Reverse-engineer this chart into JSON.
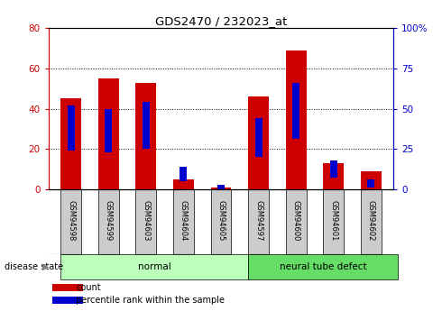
{
  "title": "GDS2470 / 232023_at",
  "samples": [
    "GSM94598",
    "GSM94599",
    "GSM94603",
    "GSM94604",
    "GSM94605",
    "GSM94597",
    "GSM94600",
    "GSM94601",
    "GSM94602"
  ],
  "count_values": [
    45,
    55,
    53,
    5,
    1,
    46,
    69,
    13,
    9
  ],
  "percentile_values": [
    26,
    25,
    27,
    7,
    1.5,
    22,
    33,
    9,
    3
  ],
  "groups": [
    {
      "label": "normal",
      "start": 0,
      "end": 5,
      "color": "#bbffbb"
    },
    {
      "label": "neural tube defect",
      "start": 5,
      "end": 9,
      "color": "#66dd66"
    }
  ],
  "left_ylim": [
    0,
    80
  ],
  "right_ylim": [
    0,
    100
  ],
  "left_yticks": [
    0,
    20,
    40,
    60,
    80
  ],
  "right_yticks": [
    0,
    25,
    50,
    75,
    100
  ],
  "right_yticklabels": [
    "0",
    "25",
    "50",
    "75",
    "100%"
  ],
  "left_ycolor": "#cc0000",
  "right_ycolor": "#0000cc",
  "bar_color": "#cc0000",
  "percentile_color": "#0000cc",
  "legend_count_label": "count",
  "legend_percentile_label": "percentile rank within the sample",
  "disease_state_label": "disease state",
  "background_color": "#ffffff",
  "plot_bg_color": "#ffffff",
  "grid_color": "#000000",
  "tick_label_bg": "#cccccc"
}
